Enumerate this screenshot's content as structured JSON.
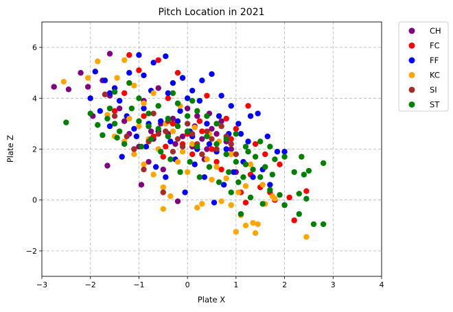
{
  "chart_data": {
    "type": "scatter",
    "title": "Pitch Location in 2021",
    "xlabel": "Plate X",
    "ylabel": "Plate Z",
    "xlim": [
      -3,
      4
    ],
    "ylim": [
      -3,
      7
    ],
    "xticks": [
      -3,
      -2,
      -1,
      0,
      1,
      2,
      3,
      4
    ],
    "yticks": [
      -2,
      0,
      2,
      4,
      6
    ],
    "grid": true,
    "legend_position": "outside-top-right",
    "series": [
      {
        "name": "CH",
        "color": "#800080",
        "points": [
          [
            -2.75,
            4.45
          ],
          [
            -2.45,
            4.35
          ],
          [
            -2.2,
            5.0
          ],
          [
            -2.05,
            4.45
          ],
          [
            -1.95,
            3.3
          ],
          [
            -1.75,
            4.7
          ],
          [
            -1.6,
            5.75
          ],
          [
            -1.65,
            1.35
          ],
          [
            -1.6,
            4.1
          ],
          [
            -1.4,
            3.6
          ],
          [
            -1.3,
            3.1
          ],
          [
            -1.2,
            2.6
          ],
          [
            -1.0,
            2.1
          ],
          [
            -0.95,
            0.6
          ],
          [
            -0.9,
            3.9
          ],
          [
            -0.8,
            1.5
          ],
          [
            -0.7,
            2.4
          ],
          [
            -0.6,
            4.4
          ],
          [
            -0.5,
            1.2
          ],
          [
            -0.4,
            2.6
          ],
          [
            -0.3,
            3.2
          ],
          [
            -0.2,
            -0.05
          ],
          [
            -0.1,
            2.5
          ],
          [
            0.0,
            3.6
          ],
          [
            0.1,
            2.1
          ],
          [
            0.2,
            3.3
          ],
          [
            0.3,
            2.4
          ],
          [
            0.4,
            2.0
          ],
          [
            0.5,
            2.8
          ],
          [
            0.6,
            2.6
          ],
          [
            0.7,
            3.1
          ],
          [
            0.8,
            2.3
          ],
          [
            0.9,
            2.0
          ],
          [
            1.0,
            1.1
          ],
          [
            -0.75,
            2.7
          ],
          [
            -0.55,
            3.0
          ],
          [
            0.15,
            2.9
          ],
          [
            0.45,
            3.4
          ],
          [
            -0.25,
            2.2
          ],
          [
            0.35,
            1.6
          ]
        ]
      },
      {
        "name": "FC",
        "color": "#ff0000",
        "points": [
          [
            -1.2,
            5.7
          ],
          [
            -1.0,
            5.1
          ],
          [
            -0.6,
            5.5
          ],
          [
            -0.2,
            5.0
          ],
          [
            -1.5,
            3.5
          ],
          [
            -1.3,
            4.2
          ],
          [
            -1.1,
            2.0
          ],
          [
            -0.9,
            3.3
          ],
          [
            -0.7,
            2.5
          ],
          [
            -0.5,
            1.7
          ],
          [
            -0.3,
            3.0
          ],
          [
            -0.1,
            2.2
          ],
          [
            0.1,
            1.8
          ],
          [
            0.3,
            2.7
          ],
          [
            0.5,
            2.0
          ],
          [
            0.7,
            1.2
          ],
          [
            0.9,
            2.4
          ],
          [
            1.1,
            0.3
          ],
          [
            1.2,
            -0.1
          ],
          [
            1.3,
            1.0
          ],
          [
            1.5,
            0.5
          ],
          [
            1.7,
            0.3
          ],
          [
            1.8,
            0.0
          ],
          [
            2.0,
            -0.2
          ],
          [
            2.1,
            0.1
          ],
          [
            2.2,
            -0.8
          ],
          [
            2.45,
            0.35
          ],
          [
            1.9,
            1.4
          ],
          [
            1.6,
            1.8
          ],
          [
            1.4,
            2.2
          ],
          [
            1.25,
            3.7
          ],
          [
            0.4,
            4.1
          ],
          [
            -0.4,
            4.0
          ],
          [
            0.8,
            3.2
          ],
          [
            0.0,
            2.6
          ],
          [
            -0.8,
            2.9
          ],
          [
            0.6,
            1.5
          ],
          [
            1.0,
            2.8
          ],
          [
            -0.45,
            2.1
          ],
          [
            0.25,
            3.1
          ]
        ]
      },
      {
        "name": "FF",
        "color": "#0000ff",
        "points": [
          [
            -1.9,
            5.05
          ],
          [
            -1.7,
            4.7
          ],
          [
            -1.5,
            4.4
          ],
          [
            -1.4,
            3.9
          ],
          [
            -1.2,
            5.0
          ],
          [
            -1.0,
            5.7
          ],
          [
            -0.9,
            4.9
          ],
          [
            -0.7,
            5.4
          ],
          [
            -0.45,
            5.65
          ],
          [
            -0.3,
            4.6
          ],
          [
            -0.1,
            4.8
          ],
          [
            0.1,
            4.3
          ],
          [
            0.3,
            4.7
          ],
          [
            0.5,
            4.95
          ],
          [
            0.7,
            4.1
          ],
          [
            0.9,
            3.7
          ],
          [
            -1.8,
            3.5
          ],
          [
            -1.6,
            2.9
          ],
          [
            -1.35,
            1.7
          ],
          [
            -1.1,
            2.8
          ],
          [
            -0.9,
            3.6
          ],
          [
            -0.75,
            4.3
          ],
          [
            -0.55,
            3.1
          ],
          [
            -0.35,
            2.3
          ],
          [
            -0.15,
            3.5
          ],
          [
            0.05,
            2.7
          ],
          [
            0.25,
            3.9
          ],
          [
            0.45,
            2.2
          ],
          [
            0.65,
            3.3
          ],
          [
            0.85,
            2.6
          ],
          [
            1.05,
            3.0
          ],
          [
            1.25,
            2.3
          ],
          [
            1.45,
            3.4
          ],
          [
            1.65,
            2.5
          ],
          [
            1.85,
            1.9
          ],
          [
            2.0,
            1.9
          ],
          [
            1.7,
            0.6
          ],
          [
            1.55,
            1.2
          ],
          [
            1.35,
            0.9
          ],
          [
            1.15,
            1.5
          ],
          [
            0.95,
            1.1
          ],
          [
            0.75,
            0.6
          ],
          [
            0.55,
            -0.1
          ],
          [
            0.35,
            0.9
          ],
          [
            0.15,
            1.4
          ],
          [
            -0.05,
            0.3
          ],
          [
            -0.25,
            1.6
          ],
          [
            -0.45,
            0.9
          ],
          [
            -0.65,
            1.3
          ],
          [
            -0.85,
            2.1
          ],
          [
            -1.05,
            2.5
          ],
          [
            -1.25,
            3.3
          ],
          [
            -0.6,
            2.7
          ],
          [
            0.2,
            2.0
          ],
          [
            0.6,
            1.9
          ],
          [
            -0.2,
            3.1
          ],
          [
            0.4,
            3.0
          ],
          [
            0.8,
            2.0
          ],
          [
            1.1,
            2.6
          ],
          [
            -0.4,
            4.2
          ],
          [
            0.0,
            4.0
          ],
          [
            -0.8,
            3.0
          ],
          [
            -1.6,
            4.2
          ],
          [
            -2.0,
            4.0
          ],
          [
            1.3,
            3.3
          ],
          [
            0.1,
            2.5
          ]
        ]
      },
      {
        "name": "KC",
        "color": "#ffa500",
        "points": [
          [
            -2.55,
            4.65
          ],
          [
            -2.05,
            4.8
          ],
          [
            -1.85,
            5.45
          ],
          [
            -1.65,
            3.35
          ],
          [
            -1.45,
            4.8
          ],
          [
            -1.3,
            5.5
          ],
          [
            -1.1,
            4.5
          ],
          [
            -0.9,
            3.8
          ],
          [
            -0.7,
            4.2
          ],
          [
            -1.5,
            2.5
          ],
          [
            -1.3,
            2.3
          ],
          [
            -1.1,
            1.8
          ],
          [
            -0.9,
            1.4
          ],
          [
            -0.7,
            1.0
          ],
          [
            -0.5,
            0.5
          ],
          [
            -0.35,
            0.15
          ],
          [
            -0.5,
            -0.35
          ],
          [
            -0.3,
            2.7
          ],
          [
            -0.1,
            1.9
          ],
          [
            0.1,
            2.2
          ],
          [
            0.2,
            -0.3
          ],
          [
            0.3,
            -0.15
          ],
          [
            0.5,
            0.8
          ],
          [
            0.7,
            -0.05
          ],
          [
            0.9,
            -0.2
          ],
          [
            1.0,
            -1.25
          ],
          [
            1.1,
            -0.6
          ],
          [
            1.2,
            -1.0
          ],
          [
            1.35,
            -0.9
          ],
          [
            1.4,
            -1.3
          ],
          [
            1.45,
            -0.95
          ],
          [
            1.6,
            -0.15
          ],
          [
            1.8,
            0.05
          ],
          [
            2.45,
            -1.45
          ],
          [
            1.55,
            0.6
          ],
          [
            1.75,
            0.15
          ],
          [
            1.2,
            0.55
          ],
          [
            0.8,
            0.85
          ],
          [
            0.6,
            1.3
          ],
          [
            0.4,
            1.6
          ],
          [
            0.0,
            1.1
          ],
          [
            -0.2,
            1.5
          ],
          [
            -0.6,
            2.0
          ],
          [
            -0.8,
            2.4
          ],
          [
            -1.0,
            2.9
          ],
          [
            -1.2,
            3.2
          ],
          [
            0.9,
            1.8
          ],
          [
            1.3,
            1.4
          ],
          [
            0.65,
            2.3
          ],
          [
            -0.45,
            3.0
          ],
          [
            0.15,
            2.85
          ],
          [
            -0.15,
            3.7
          ],
          [
            0.45,
            2.6
          ],
          [
            1.05,
            0.3
          ]
        ]
      },
      {
        "name": "SI",
        "color": "#a52a2a",
        "points": [
          [
            -1.7,
            4.15
          ],
          [
            -1.5,
            3.3
          ],
          [
            -1.25,
            2.5
          ],
          [
            -1.1,
            2.0
          ],
          [
            -0.9,
            1.2
          ],
          [
            -0.5,
            0.3
          ],
          [
            -0.6,
            2.6
          ],
          [
            -0.4,
            3.1
          ],
          [
            -0.2,
            2.4
          ],
          [
            0.0,
            3.0
          ],
          [
            0.2,
            2.2
          ],
          [
            0.4,
            2.7
          ],
          [
            0.6,
            2.0
          ],
          [
            0.8,
            2.5
          ],
          [
            1.0,
            1.8
          ],
          [
            -0.8,
            2.3
          ],
          [
            -0.3,
            1.9
          ],
          [
            0.1,
            2.6
          ],
          [
            0.5,
            2.4
          ],
          [
            0.9,
            2.2
          ],
          [
            -0.7,
            3.4
          ],
          [
            -0.1,
            2.1
          ],
          [
            0.3,
            1.8
          ],
          [
            0.7,
            2.9
          ],
          [
            -0.45,
            2.7
          ]
        ]
      },
      {
        "name": "ST",
        "color": "#008000",
        "points": [
          [
            -2.5,
            3.05
          ],
          [
            -2.0,
            3.4
          ],
          [
            -1.85,
            2.95
          ],
          [
            -1.75,
            2.55
          ],
          [
            -1.65,
            3.2
          ],
          [
            -1.5,
            3.0
          ],
          [
            -1.4,
            2.7
          ],
          [
            -1.45,
            2.45
          ],
          [
            -1.5,
            4.25
          ],
          [
            -1.2,
            4.6
          ],
          [
            -1.0,
            4.0
          ],
          [
            -0.8,
            3.4
          ],
          [
            -0.6,
            3.7
          ],
          [
            -0.4,
            3.2
          ],
          [
            -0.2,
            2.9
          ],
          [
            0.0,
            2.7
          ],
          [
            0.2,
            3.5
          ],
          [
            0.4,
            2.5
          ],
          [
            0.6,
            2.2
          ],
          [
            0.8,
            1.8
          ],
          [
            1.0,
            2.6
          ],
          [
            1.2,
            1.4
          ],
          [
            1.4,
            1.7
          ],
          [
            1.6,
            1.3
          ],
          [
            1.8,
            1.6
          ],
          [
            2.0,
            1.7
          ],
          [
            2.2,
            1.1
          ],
          [
            2.35,
            1.7
          ],
          [
            2.5,
            1.15
          ],
          [
            2.4,
            1.0
          ],
          [
            2.0,
            -0.2
          ],
          [
            1.9,
            0.2
          ],
          [
            1.7,
            0.4
          ],
          [
            1.5,
            0.9
          ],
          [
            1.55,
            -0.15
          ],
          [
            1.3,
            0.1
          ],
          [
            1.1,
            -0.55
          ],
          [
            1.05,
            0.7
          ],
          [
            0.85,
            1.1
          ],
          [
            0.65,
            0.7
          ],
          [
            0.45,
            1.3
          ],
          [
            0.25,
            0.9
          ],
          [
            0.05,
            1.5
          ],
          [
            -0.15,
            1.1
          ],
          [
            -0.35,
            1.6
          ],
          [
            -0.55,
            1.9
          ],
          [
            -0.75,
            2.4
          ],
          [
            -0.95,
            2.1
          ],
          [
            2.6,
            -0.95
          ],
          [
            2.8,
            -0.95
          ],
          [
            2.8,
            1.45
          ],
          [
            2.3,
            0.25
          ],
          [
            2.45,
            0.05
          ],
          [
            2.3,
            -0.55
          ],
          [
            1.2,
            2.1
          ],
          [
            1.0,
            1.5
          ],
          [
            0.8,
            2.4
          ],
          [
            0.6,
            3.0
          ],
          [
            0.4,
            3.3
          ],
          [
            0.2,
            2.1
          ],
          [
            0.0,
            3.3
          ],
          [
            -0.2,
            3.8
          ],
          [
            -0.4,
            2.5
          ],
          [
            -0.6,
            2.8
          ],
          [
            -0.8,
            2.9
          ],
          [
            -1.0,
            3.1
          ],
          [
            1.35,
            1.2
          ],
          [
            1.5,
            2.3
          ],
          [
            1.7,
            2.1
          ],
          [
            1.75,
            1.0
          ],
          [
            0.9,
            0.3
          ],
          [
            1.15,
            0.9
          ],
          [
            1.25,
            1.9
          ],
          [
            -1.15,
            3.6
          ],
          [
            -1.3,
            2.2
          ],
          [
            -1.6,
            3.6
          ],
          [
            -0.3,
            4.2
          ],
          [
            0.1,
            3.9
          ]
        ]
      }
    ]
  }
}
